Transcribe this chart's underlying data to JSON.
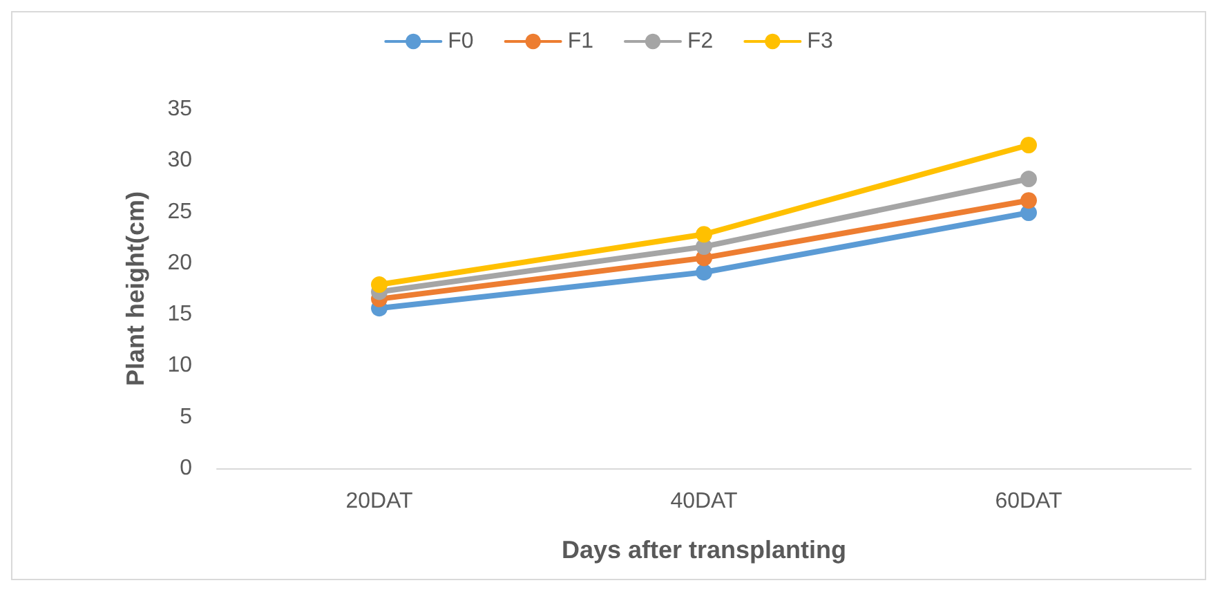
{
  "chart_data": {
    "type": "line",
    "xlabel": "Days after transplanting",
    "ylabel": "Plant height(cm)",
    "categories": [
      "20DAT",
      "40DAT",
      "60DAT"
    ],
    "series": [
      {
        "name": "F0",
        "color": "#5b9bd5",
        "values": [
          15.6,
          19.1,
          24.9
        ]
      },
      {
        "name": "F1",
        "color": "#ed7d31",
        "values": [
          16.5,
          20.5,
          26.1
        ]
      },
      {
        "name": "F2",
        "color": "#a5a5a5",
        "values": [
          17.2,
          21.6,
          28.2
        ]
      },
      {
        "name": "F3",
        "color": "#ffc000",
        "values": [
          17.9,
          22.8,
          31.5
        ]
      }
    ],
    "ylim": [
      0,
      35
    ],
    "yticks": [
      0,
      5,
      10,
      15,
      20,
      25,
      30,
      35
    ],
    "grid": false,
    "legend": "top",
    "marker": "circle",
    "line_style": "solid"
  }
}
